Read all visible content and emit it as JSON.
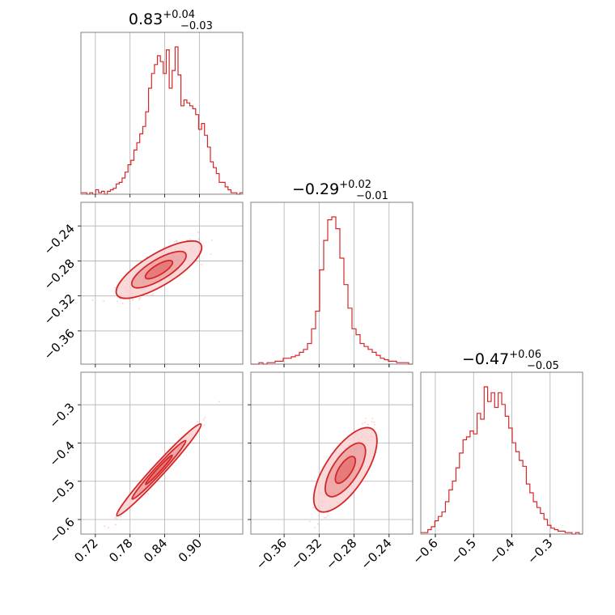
{
  "colors": {
    "main": "#d62728",
    "light": "#f4a9aa",
    "fill_inner": "#e78a8b",
    "fill_outer": "#f8d0d1"
  },
  "chart_data": {
    "type": "corner",
    "parameters": [
      {
        "median": "0.83",
        "plus": "+0.04",
        "minus": "−0.03",
        "range": [
          0.695,
          0.975
        ],
        "ticks": [
          0.72,
          0.78,
          0.84,
          0.9
        ],
        "tick_labels": [
          "0.72",
          "0.78",
          "0.84",
          "0.90"
        ]
      },
      {
        "median": "−0.29",
        "plus": "+0.02",
        "minus": "−0.01",
        "range": [
          -0.398,
          -0.213
        ],
        "ticks": [
          -0.36,
          -0.32,
          -0.28,
          -0.24
        ],
        "tick_labels": [
          "−0.36",
          "−0.32",
          "−0.28",
          "−0.24"
        ]
      },
      {
        "median": "−0.47",
        "plus": "+0.06",
        "minus": "−0.05",
        "range": [
          -0.638,
          -0.215
        ],
        "ticks": [
          -0.6,
          -0.5,
          -0.4,
          -0.3
        ],
        "tick_labels": [
          "−0.6",
          "−0.5",
          "−0.4",
          "−0.3"
        ]
      }
    ],
    "histograms": [
      {
        "x_min": 0.695,
        "x_max": 0.975,
        "counts": [
          1,
          1,
          0,
          1,
          0,
          3,
          1,
          2,
          0,
          2,
          3,
          4,
          7,
          8,
          11,
          15,
          20,
          23,
          30,
          35,
          41,
          46,
          56,
          72,
          82,
          88,
          94,
          90,
          82,
          98,
          72,
          84,
          100,
          81,
          60,
          64,
          62,
          60,
          58,
          54,
          44,
          48,
          40,
          32,
          22,
          18,
          14,
          8,
          8,
          5,
          3,
          1,
          1,
          0,
          1
        ]
      },
      {
        "x_min": -0.398,
        "x_max": -0.213,
        "counts": [
          0,
          0,
          1,
          0,
          1,
          1,
          2,
          2,
          4,
          4,
          5,
          6,
          8,
          10,
          14,
          24,
          36,
          64,
          84,
          98,
          100,
          92,
          72,
          54,
          38,
          24,
          20,
          14,
          12,
          10,
          8,
          6,
          4,
          3,
          2,
          2,
          1,
          1,
          1,
          0
        ]
      },
      {
        "x_min": -0.638,
        "x_max": -0.215,
        "counts": [
          1,
          1,
          3,
          5,
          9,
          12,
          15,
          22,
          30,
          36,
          45,
          55,
          64,
          66,
          70,
          68,
          82,
          78,
          100,
          90,
          96,
          86,
          96,
          88,
          80,
          72,
          62,
          56,
          50,
          46,
          34,
          28,
          22,
          18,
          14,
          10,
          6,
          4,
          3,
          2,
          2,
          1,
          1,
          0,
          1,
          0
        ]
      }
    ],
    "correlations": {
      "p1_p2": 0.82,
      "p1_p3": 0.99,
      "p2_p3": 0.88
    }
  }
}
